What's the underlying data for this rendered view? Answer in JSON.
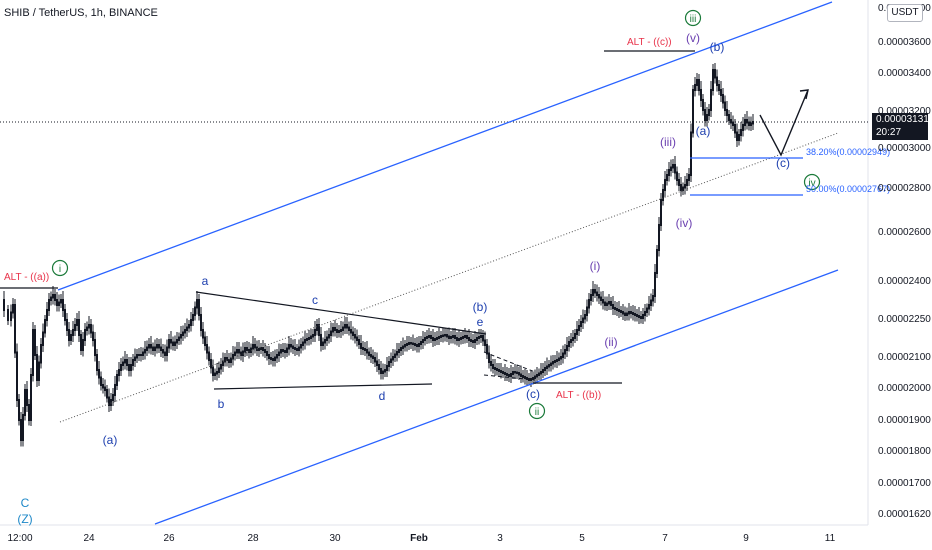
{
  "header": {
    "title": "SHIB / TetherUS, 1h, BINANCE",
    "currency": "USDT"
  },
  "price_tag": {
    "price": "0.00003131",
    "countdown": "20:27"
  },
  "colors": {
    "channel": "#2962ff",
    "candle": "#131722",
    "wave_blue": "#1e40af",
    "wave_green": "#1b7a3a",
    "alt_red": "#e8334a",
    "fib": "#2962ff"
  },
  "chart_data": {
    "type": "candlestick",
    "series": "SHIB/USDT 1h",
    "y_axis": {
      "ticks": [
        "0.00001620",
        "0.00001700",
        "0.00001800",
        "0.00001900",
        "0.00002000",
        "0.00002100",
        "0.00002250",
        "0.00002400",
        "0.00002600",
        "0.00002800",
        "0.00003000",
        "0.00003200",
        "0.00003400",
        "0.00003600",
        "0.00003800"
      ],
      "scale": "log"
    },
    "x_axis": {
      "ticks": [
        "12:00",
        "24",
        "26",
        "28",
        "30",
        "Feb",
        "3",
        "5",
        "7",
        "9",
        "11"
      ]
    },
    "approx_path": [
      {
        "t": "Jan 23 12:00",
        "price": 2.28e-05
      },
      {
        "t": "Jan 23 18:00",
        "price": 1.75e-05
      },
      {
        "t": "Jan 24 00:00",
        "price": 2.33e-05
      },
      {
        "t": "Jan 24 12:00",
        "price": 2.18e-05
      },
      {
        "t": "Jan 25 00:00",
        "price": 1.9e-05
      },
      {
        "t": "Jan 26 00:00",
        "price": 2.18e-05
      },
      {
        "t": "Jan 26 18:00",
        "price": 2.33e-05
      },
      {
        "t": "Jan 27 06:00",
        "price": 2e-05
      },
      {
        "t": "Jan 29 12:00",
        "price": 2.23e-05
      },
      {
        "t": "Jan 30 12:00",
        "price": 2.14e-05
      },
      {
        "t": "Jan 31 00:00",
        "price": 2.01e-05
      },
      {
        "t": "Feb 1 00:00",
        "price": 2.15e-05
      },
      {
        "t": "Feb 2 00:00",
        "price": 2.13e-05
      },
      {
        "t": "Feb 3 18:00",
        "price": 2.01e-05
      },
      {
        "t": "Feb 4 18:00",
        "price": 2.21e-05
      },
      {
        "t": "Feb 5 06:00",
        "price": 2.39e-05
      },
      {
        "t": "Feb 6 12:00",
        "price": 2.24e-05
      },
      {
        "t": "Feb 6 18:00",
        "price": 2.43e-05
      },
      {
        "t": "Feb 7 00:00",
        "price": 2.95e-05
      },
      {
        "t": "Feb 7 12:00",
        "price": 2.77e-05
      },
      {
        "t": "Feb 7 18:00",
        "price": 3.52e-05
      },
      {
        "t": "Feb 8 00:00",
        "price": 3.07e-05
      },
      {
        "t": "Feb 8 12:00",
        "price": 3.48e-05
      },
      {
        "t": "Feb 9 00:00",
        "price": 3e-05
      },
      {
        "t": "Feb 9 12:00",
        "price": 3.13e-05
      }
    ],
    "annotations": {
      "wave_labels": [
        "C",
        "(Z)",
        "(a)",
        "a",
        "b",
        "c",
        "d",
        "(b)",
        "e",
        "(c)",
        "(i)",
        "(ii)",
        "(iii)",
        "(iv)",
        "(v)",
        "(a)",
        "(b)",
        "(c)"
      ],
      "circled_labels": [
        "i",
        "ii",
        "iii",
        "iv"
      ],
      "alt_labels": [
        "ALT - ((a))",
        "ALT - ((b))",
        "ALT - ((c))"
      ],
      "fib_levels": [
        {
          "label": "38.20%(0.00002949)",
          "value": 2.949e-05
        },
        {
          "label": "50.00%(0.00002767)",
          "value": 2.767e-05
        }
      ]
    }
  }
}
